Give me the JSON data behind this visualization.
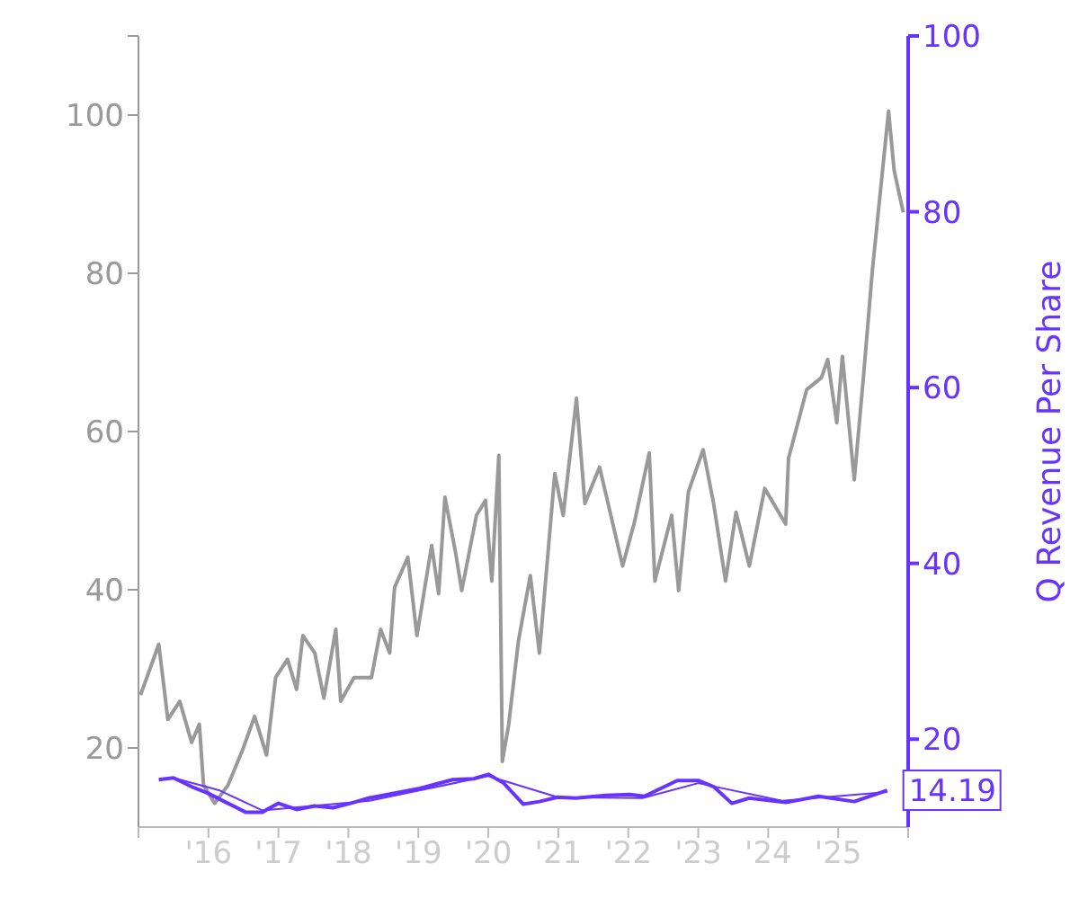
{
  "chart_data": {
    "type": "line",
    "y2label": "Q Revenue Per Share",
    "xlim": [
      2015,
      2026
    ],
    "xticks": [
      {
        "value": 2015,
        "label": null
      },
      {
        "value": 2016,
        "label": "'16"
      },
      {
        "value": 2017,
        "label": "'17"
      },
      {
        "value": 2018,
        "label": "'18"
      },
      {
        "value": 2019,
        "label": "'19"
      },
      {
        "value": 2020,
        "label": "'20"
      },
      {
        "value": 2021,
        "label": "'21"
      },
      {
        "value": 2022,
        "label": "'22"
      },
      {
        "value": 2023,
        "label": "'23"
      },
      {
        "value": 2024,
        "label": "'24"
      },
      {
        "value": 2025,
        "label": "'25"
      },
      {
        "value": 2026,
        "label": null
      }
    ],
    "ylim": [
      10,
      110
    ],
    "yticks": [
      20,
      40,
      60,
      80,
      100,
      {
        "value": 110,
        "label": null
      }
    ],
    "y2lim": [
      10,
      100
    ],
    "y2ticks": [
      20,
      40,
      60,
      80,
      100
    ],
    "marker": "none",
    "line_style": "solid",
    "series": [
      {
        "color": "#999999",
        "x": [
          2015.03,
          2015.29,
          2015.42,
          2015.59,
          2015.76,
          2015.87,
          2015.93,
          2016.09,
          2016.28,
          2016.49,
          2016.66,
          2016.83,
          2016.96,
          2017.13,
          2017.26,
          2017.35,
          2017.52,
          2017.65,
          2017.82,
          2017.89,
          2018.08,
          2018.33,
          2018.46,
          2018.59,
          2018.66,
          2018.85,
          2018.98,
          2019.19,
          2019.29,
          2019.38,
          2019.53,
          2019.62,
          2019.83,
          2019.96,
          2020.05,
          2020.15,
          2020.2,
          2020.29,
          2020.43,
          2020.6,
          2020.73,
          2020.95,
          2021.07,
          2021.26,
          2021.38,
          2021.59,
          2021.92,
          2022.09,
          2022.3,
          2022.38,
          2022.62,
          2022.72,
          2022.86,
          2023.07,
          2023.22,
          2023.39,
          2023.54,
          2023.73,
          2023.95,
          2024.25,
          2024.29,
          2024.55,
          2024.76,
          2024.85,
          2024.98,
          2025.06,
          2025.23,
          2025.36,
          2025.49,
          2025.72,
          2025.8,
          2025.93
        ],
        "values": [
          26.7,
          33.1,
          23.6,
          25.9,
          20.7,
          23,
          15.3,
          13,
          15.3,
          19.8,
          24,
          19.1,
          28.9,
          31.2,
          27.4,
          34.2,
          32,
          26.3,
          35,
          25.9,
          28.9,
          28.9,
          35,
          32,
          40.3,
          44.1,
          34.2,
          45.6,
          39.5,
          51.7,
          44.8,
          39.9,
          49.4,
          51.3,
          41.1,
          57,
          18.3,
          22.9,
          33.5,
          41.8,
          32,
          54.7,
          49.4,
          64.2,
          50.9,
          55.5,
          43,
          48.6,
          57.3,
          41.1,
          49.4,
          39.9,
          52.4,
          57.7,
          50.9,
          41.1,
          49.8,
          43,
          52.8,
          48.3,
          56.6,
          65.3,
          66.8,
          69.1,
          61.1,
          69.5,
          53.9,
          66.8,
          80.5,
          100.5,
          93,
          87.7
        ]
      },
      {
        "color": "#6633ff",
        "axis": "y2",
        "x": [
          2015.29,
          2015.5,
          2015.76,
          2015.98,
          2016.28,
          2016.53,
          2016.77,
          2017.0,
          2017.26,
          2017.52,
          2017.78,
          2018.03,
          2018.29,
          2019.02,
          2019.49,
          2019.79,
          2020.0,
          2020.22,
          2020.5,
          2020.73,
          2020.99,
          2021.25,
          2021.68,
          2022.02,
          2022.23,
          2022.7,
          2023.0,
          2023.22,
          2023.48,
          2023.73,
          2024.25,
          2024.72,
          2025.23,
          2025.7
        ],
        "values": [
          15.4,
          15.6,
          14.6,
          13.9,
          12.7,
          11.7,
          11.7,
          12.7,
          12.0,
          12.4,
          12.2,
          12.7,
          13.3,
          14.4,
          15.4,
          15.5,
          16.0,
          15.0,
          12.6,
          12.9,
          13.4,
          13.3,
          13.6,
          13.7,
          13.5,
          15.3,
          15.3,
          14.6,
          12.7,
          13.3,
          12.8,
          13.5,
          12.9,
          14.19
        ],
        "value_labels": [
          null,
          null,
          null,
          null,
          null,
          null,
          null,
          null,
          null,
          null,
          null,
          null,
          null,
          null,
          null,
          null,
          null,
          null,
          null,
          null,
          null,
          null,
          null,
          null,
          null,
          null,
          null,
          null,
          null,
          null,
          null,
          null,
          null,
          "14.19"
        ]
      },
      {
        "color": "#6633ff",
        "axis": "y2",
        "x": [
          2015.5,
          2016.15,
          2016.77,
          2018.3,
          2020.0,
          2020.99,
          2022.2,
          2023.0,
          2024.2,
          2025.7
        ],
        "values": [
          15.6,
          14.2,
          11.9,
          13.0,
          15.8,
          13.4,
          13.3,
          15.0,
          13.0,
          14.0
        ]
      }
    ]
  }
}
